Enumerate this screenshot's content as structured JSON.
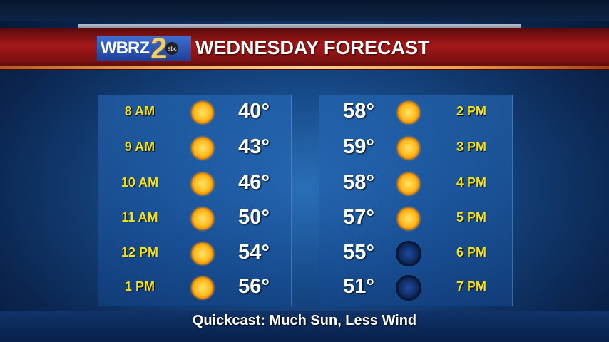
{
  "header": {
    "logo_text": "WBRZ",
    "logo_number": "2",
    "network": "abc",
    "title": "WEDNESDAY FORECAST"
  },
  "left": [
    {
      "time": "8 AM",
      "temp": "40°",
      "icon": "sun-icon"
    },
    {
      "time": "9 AM",
      "temp": "43°",
      "icon": "sun-icon"
    },
    {
      "time": "10 AM",
      "temp": "46°",
      "icon": "sun-icon"
    },
    {
      "time": "11 AM",
      "temp": "50°",
      "icon": "sun-icon"
    },
    {
      "time": "12 PM",
      "temp": "54°",
      "icon": "sun-icon"
    },
    {
      "time": "1 PM",
      "temp": "56°",
      "icon": "sun-icon"
    }
  ],
  "right": [
    {
      "time": "2 PM",
      "temp": "58°",
      "icon": "sun-icon"
    },
    {
      "time": "3 PM",
      "temp": "59°",
      "icon": "sun-icon"
    },
    {
      "time": "4 PM",
      "temp": "58°",
      "icon": "sun-icon"
    },
    {
      "time": "5 PM",
      "temp": "57°",
      "icon": "sun-icon"
    },
    {
      "time": "6 PM",
      "temp": "55°",
      "icon": "clear-night-icon"
    },
    {
      "time": "7 PM",
      "temp": "51°",
      "icon": "clear-night-icon"
    }
  ],
  "footer": {
    "text": "Quickcast: Much Sun, Less Wind"
  },
  "colors": {
    "banner": "#a5191a",
    "time_text": "#f2e21a",
    "temp_text": "#ffffff"
  }
}
